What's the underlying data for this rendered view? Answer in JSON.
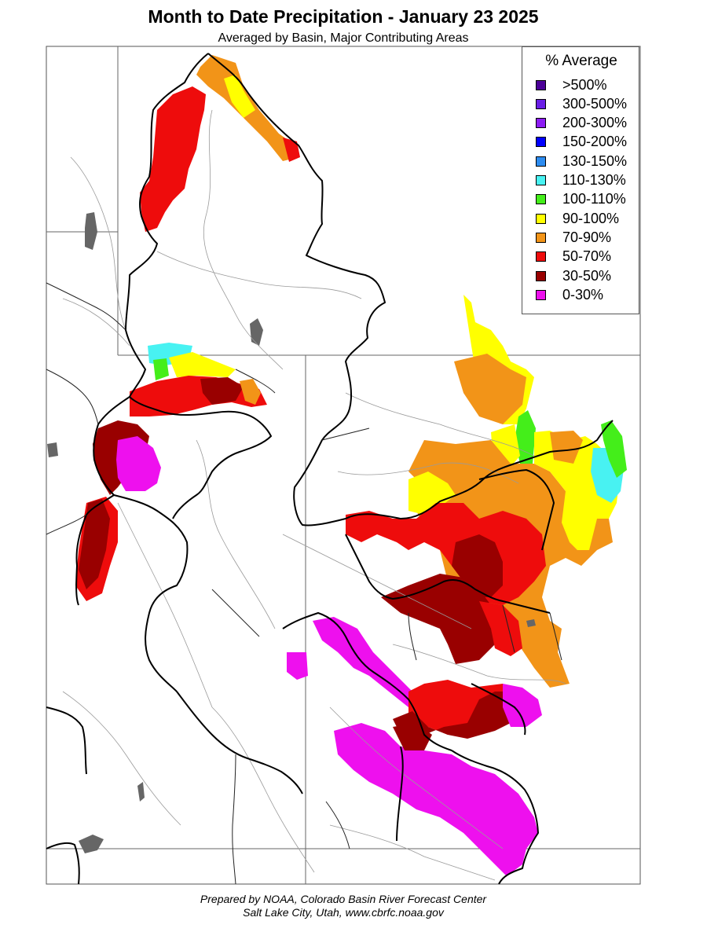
{
  "title": "Month to Date Precipitation - January 23 2025",
  "subtitle": "Averaged by Basin, Major Contributing Areas",
  "legend": {
    "title": "% Average",
    "items": [
      {
        "label": ">500%",
        "color": "#4b0097"
      },
      {
        "label": "300-500%",
        "color": "#6a1ee6"
      },
      {
        "label": "200-300%",
        "color": "#8c1cf4"
      },
      {
        "label": "150-200%",
        "color": "#0000ff"
      },
      {
        "label": "130-150%",
        "color": "#2d8cf0"
      },
      {
        "label": "110-130%",
        "color": "#48f2f2"
      },
      {
        "label": "100-110%",
        "color": "#44ee1a"
      },
      {
        "label": "90-100%",
        "color": "#ffff00"
      },
      {
        "label": "70-90%",
        "color": "#f29418"
      },
      {
        "label": "50-70%",
        "color": "#ee0c0c"
      },
      {
        "label": "30-50%",
        "color": "#990000"
      },
      {
        "label": "0-30%",
        "color": "#ee10ee"
      }
    ]
  },
  "footer": {
    "line1": "Prepared by NOAA, Colorado Basin River Forecast Center",
    "line2": "Salt Lake City, Utah, www.cbrfc.noaa.gov"
  }
}
